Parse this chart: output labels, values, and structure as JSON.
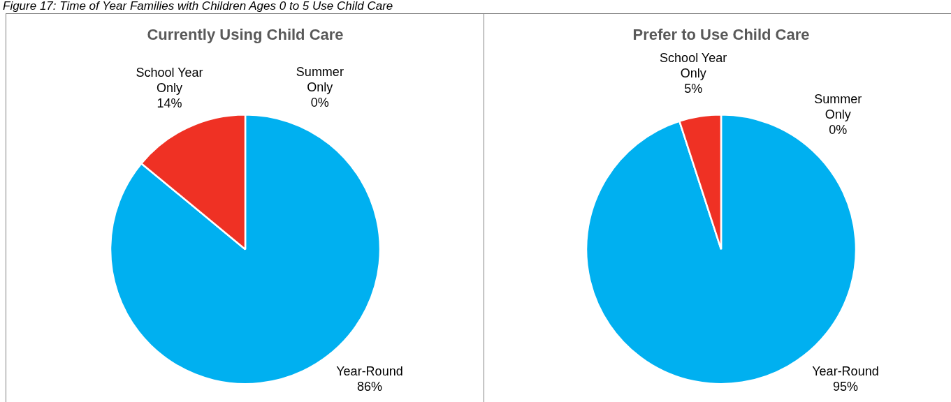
{
  "chart_data": [
    {
      "type": "pie",
      "title": "Currently Using Child Care",
      "annotations": [
        "Figure 17: Time of Year Families with Children Ages 0 to 5 Use Child Care"
      ],
      "categories": [
        "Year-Round",
        "School Year Only",
        "Summer Only"
      ],
      "values": [
        86,
        14,
        0
      ],
      "colors": [
        "#00b0f0",
        "#ef3124",
        "#70ad47"
      ],
      "value_labels": [
        "86%",
        "14%",
        "0%"
      ],
      "legend": false
    },
    {
      "type": "pie",
      "title": "Prefer to Use Child Care",
      "categories": [
        "Year-Round",
        "School Year Only",
        "Summer Only"
      ],
      "values": [
        95,
        5,
        0
      ],
      "colors": [
        "#00b0f0",
        "#ef3124",
        "#70ad47"
      ],
      "value_labels": [
        "95%",
        "5%",
        "0%"
      ],
      "legend": false
    }
  ]
}
